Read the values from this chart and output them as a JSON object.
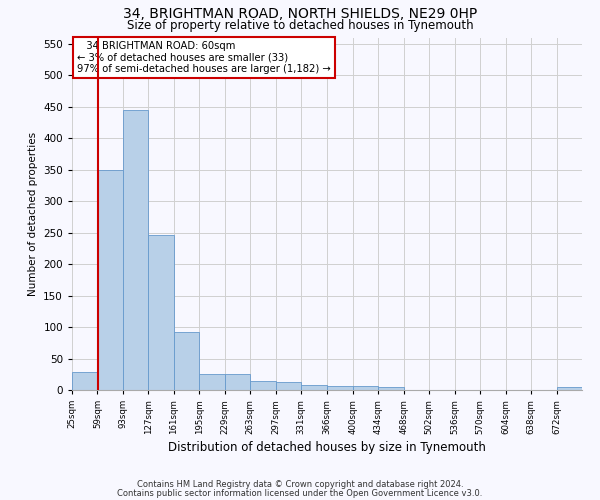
{
  "title": "34, BRIGHTMAN ROAD, NORTH SHIELDS, NE29 0HP",
  "subtitle": "Size of property relative to detached houses in Tynemouth",
  "xlabel": "Distribution of detached houses by size in Tynemouth",
  "ylabel": "Number of detached properties",
  "footnote1": "Contains HM Land Registry data © Crown copyright and database right 2024.",
  "footnote2": "Contains public sector information licensed under the Open Government Licence v3.0.",
  "annotation_line1": "   34 BRIGHTMAN ROAD: 60sqm",
  "annotation_line2": "← 3% of detached houses are smaller (33)",
  "annotation_line3": "97% of semi-detached houses are larger (1,182) →",
  "property_size": 60,
  "bin_edges": [
    25,
    59,
    93,
    127,
    161,
    195,
    229,
    263,
    297,
    331,
    366,
    400,
    434,
    468,
    502,
    536,
    570,
    604,
    638,
    672,
    706
  ],
  "bar_heights": [
    28,
    350,
    445,
    247,
    92,
    25,
    25,
    14,
    12,
    8,
    6,
    6,
    5,
    0,
    0,
    0,
    0,
    0,
    0,
    5
  ],
  "bar_color": "#b8d0e8",
  "bar_edge_color": "#6699cc",
  "vline_color": "#cc0000",
  "annotation_box_edge": "#cc0000",
  "annotation_box_face": "#ffffff",
  "grid_color": "#d0d0d0",
  "background_color": "#f8f8ff",
  "ylim": [
    0,
    560
  ],
  "yticks": [
    0,
    50,
    100,
    150,
    200,
    250,
    300,
    350,
    400,
    450,
    500,
    550
  ]
}
